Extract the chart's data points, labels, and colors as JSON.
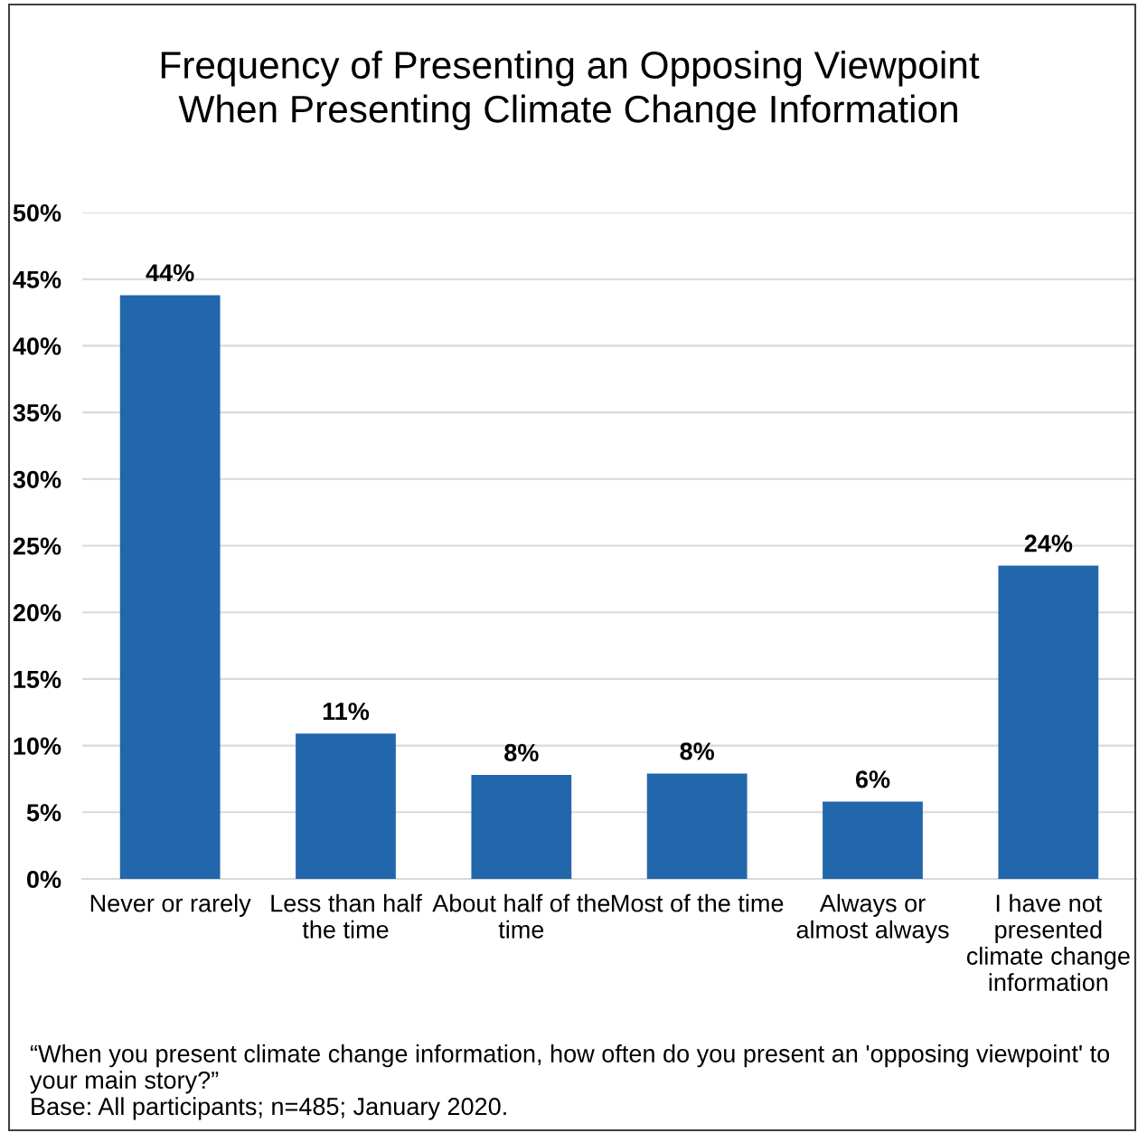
{
  "chart_data": {
    "type": "bar",
    "title": "Frequency of Presenting an Opposing Viewpoint\nWhen Presenting Climate Change Information",
    "categories": [
      "Never or rarely",
      "Less than half\nthe time",
      "About half of the\ntime",
      "Most of the time",
      "Always or\nalmost always",
      "I have not\npresented\nclimate change\ninformation"
    ],
    "values": [
      43.8,
      10.9,
      7.8,
      7.9,
      5.8,
      23.5
    ],
    "value_labels": [
      "44%",
      "11%",
      "8%",
      "8%",
      "6%",
      "24%"
    ],
    "color": "#2266ac",
    "ylim": [
      0,
      50
    ],
    "yticks": [
      {
        "value": 0,
        "label": "0%"
      },
      {
        "value": 5,
        "label": "5%"
      },
      {
        "value": 10,
        "label": "10%"
      },
      {
        "value": 15,
        "label": "15%"
      },
      {
        "value": 20,
        "label": "20%"
      },
      {
        "value": 25,
        "label": "25%"
      },
      {
        "value": 30,
        "label": "30%"
      },
      {
        "value": 35,
        "label": "35%"
      },
      {
        "value": 40,
        "label": "40%"
      },
      {
        "value": 45,
        "label": "45%"
      },
      {
        "value": 50,
        "label": "50%"
      }
    ],
    "grid": "y",
    "annotations": [
      "“When you present climate change information, how often do you present an 'opposing viewpoint' to your main story?”",
      "Base: All participants; n=485; January 2020."
    ]
  }
}
